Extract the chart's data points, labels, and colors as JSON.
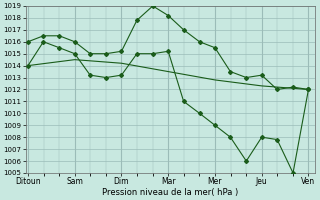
{
  "title": "",
  "xlabel": "Pression niveau de la mer( hPa )",
  "ylabel": "",
  "background_color": "#c8e8e0",
  "grid_color": "#9bbcb8",
  "line_color": "#1a5c1a",
  "ylim": [
    1005,
    1019
  ],
  "yticks": [
    1005,
    1006,
    1007,
    1008,
    1009,
    1010,
    1011,
    1012,
    1013,
    1014,
    1015,
    1016,
    1017,
    1018,
    1019
  ],
  "x_labels": [
    "Ditoun",
    "Sam",
    "Dim",
    "Mar",
    "Mer",
    "Jeu",
    "Ven"
  ],
  "x_positions": [
    0,
    1,
    2,
    3,
    4,
    5,
    6
  ],
  "line1_x": [
    0,
    0.33,
    0.67,
    1.0,
    1.33,
    1.67,
    2.0,
    2.33,
    2.67,
    3.0,
    3.33,
    3.67,
    4.0,
    4.33,
    4.67,
    5.0,
    5.33,
    5.67,
    6.0
  ],
  "line1_y": [
    1016,
    1016.5,
    1016.5,
    1016,
    1015,
    1015,
    1015.2,
    1017.8,
    1019,
    1018.2,
    1017,
    1016,
    1015.5,
    1013.5,
    1013,
    1013.2,
    1012,
    1012.2,
    1012
  ],
  "line2_x": [
    0,
    0.33,
    0.67,
    1.0,
    1.33,
    1.67,
    2.0,
    2.33,
    2.67,
    3.0,
    3.33,
    3.67,
    4.0,
    4.33,
    4.67,
    5.0,
    5.33,
    5.67,
    6.0
  ],
  "line2_y": [
    1014,
    1016,
    1015.5,
    1015,
    1013.2,
    1013,
    1013.2,
    1015,
    1015,
    1015.2,
    1011,
    1010,
    1009,
    1008,
    1006,
    1008,
    1007.8,
    1005,
    1012
  ],
  "line3_x": [
    0,
    1.0,
    2.0,
    3.0,
    4.0,
    5.0,
    6.0
  ],
  "line3_y": [
    1014.0,
    1014.5,
    1014.2,
    1013.5,
    1012.8,
    1012.3,
    1012.0
  ]
}
